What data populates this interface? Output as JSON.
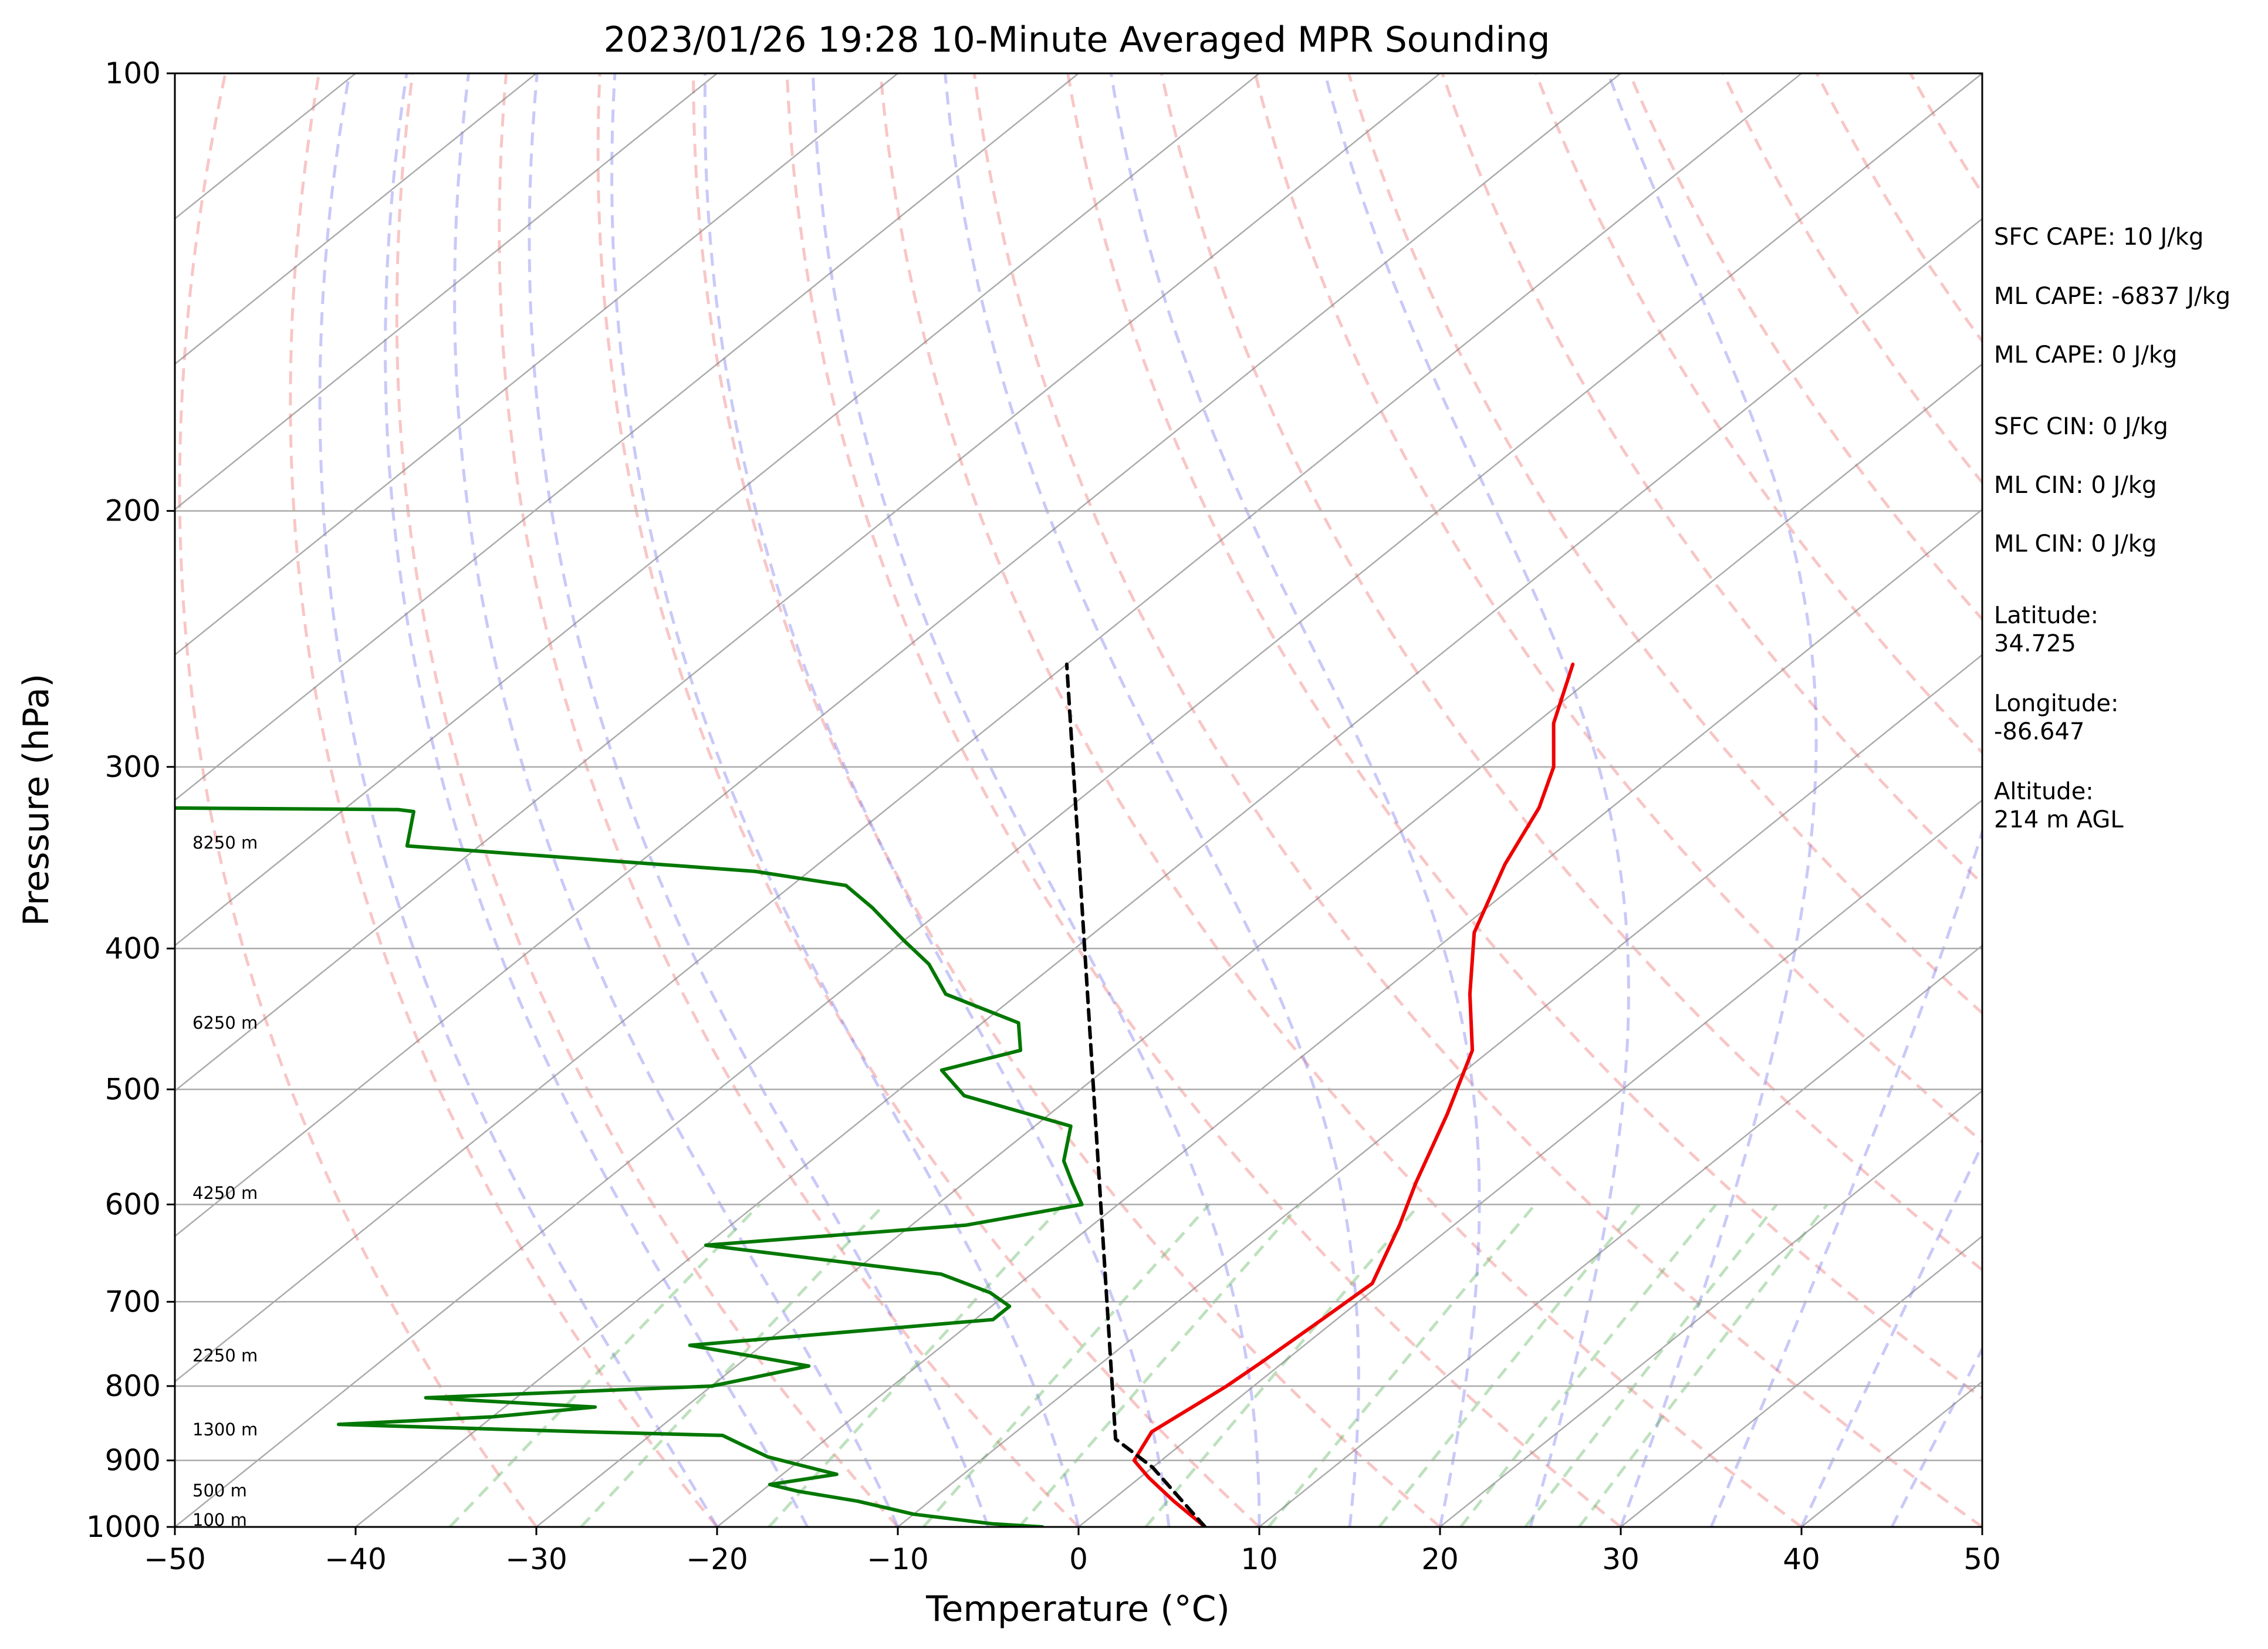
{
  "chart_data": {
    "type": "line",
    "title": "2023/01/26 19:28 10-Minute Averaged MPR Sounding",
    "xlabel": "Temperature (°C)",
    "ylabel": "Pressure (hPa)",
    "xlim": [
      -50,
      50
    ],
    "ylim": [
      1000,
      100
    ],
    "y_scale": "log",
    "skew": true,
    "grid": true,
    "x_ticks": [
      "−50",
      "−40",
      "−30",
      "−20",
      "−10",
      "0",
      "10",
      "20",
      "30",
      "40",
      "50"
    ],
    "y_ticks": [
      "100",
      "200",
      "300",
      "400",
      "500",
      "600",
      "700",
      "800",
      "900",
      "1000"
    ],
    "series": [
      {
        "color": "#ee0000",
        "points": [
          [
            7.0,
            1000
          ],
          [
            3.5,
            960
          ],
          [
            0.5,
            925
          ],
          [
            -1.5,
            900
          ],
          [
            -2.5,
            860
          ],
          [
            -2.0,
            830
          ],
          [
            -1.5,
            800
          ],
          [
            -1.2,
            770
          ],
          [
            -0.8,
            720
          ],
          [
            -0.5,
            680
          ],
          [
            -3.0,
            620
          ],
          [
            -5.0,
            580
          ],
          [
            -8.0,
            520
          ],
          [
            -11.0,
            470
          ],
          [
            -15.0,
            430
          ],
          [
            -19.0,
            390
          ],
          [
            -22.0,
            350
          ],
          [
            -24.0,
            320
          ],
          [
            -26.0,
            300
          ],
          [
            -29.0,
            280
          ],
          [
            -32.0,
            255
          ]
        ]
      },
      {
        "color": "#007700",
        "points": [
          [
            -2,
            1000
          ],
          [
            -5,
            995
          ],
          [
            -10,
            980
          ],
          [
            -14,
            960
          ],
          [
            -18,
            945
          ],
          [
            -20,
            935
          ],
          [
            -17,
            920
          ],
          [
            -20,
            905
          ],
          [
            -22,
            895
          ],
          [
            -24,
            880
          ],
          [
            -26,
            865
          ],
          [
            -34,
            860
          ],
          [
            -48,
            850
          ],
          [
            -40,
            840
          ],
          [
            -35,
            827
          ],
          [
            -45,
            815
          ],
          [
            -30,
            800
          ],
          [
            -26,
            775
          ],
          [
            -34,
            750
          ],
          [
            -19,
            720
          ],
          [
            -19,
            705
          ],
          [
            -21,
            690
          ],
          [
            -25,
            670
          ],
          [
            -40,
            640
          ],
          [
            -27,
            620
          ],
          [
            -22,
            600
          ],
          [
            -24,
            580
          ],
          [
            -26,
            560
          ],
          [
            -28,
            530
          ],
          [
            -36,
            505
          ],
          [
            -39,
            485
          ],
          [
            -36,
            470
          ],
          [
            -38,
            450
          ],
          [
            -44,
            430
          ],
          [
            -47,
            410
          ],
          [
            -50,
            395
          ],
          [
            -54,
            375
          ],
          [
            -57,
            362
          ],
          [
            -63,
            354
          ],
          [
            -84,
            340
          ],
          [
            -86,
            322
          ],
          [
            -87,
            321
          ],
          [
            -102,
            320
          ]
        ]
      },
      {
        "color": "#000000",
        "dashed": true,
        "points": [
          [
            7.0,
            1000
          ],
          [
            0.0,
            910
          ],
          [
            -4.0,
            870
          ],
          [
            -60.0,
            255
          ]
        ]
      }
    ],
    "height_labels": [
      "8250 m",
      "6250 m",
      "4250 m",
      "2250 m",
      "1300 m",
      "500 m",
      "100 m"
    ],
    "info": {
      "sfc_cape": "SFC CAPE: 10 J/kg",
      "ml_cape_1": "ML CAPE: -6837 J/kg",
      "ml_cape_2": "ML CAPE: 0 J/kg",
      "sfc_cin": "SFC CIN: 0 J/kg",
      "ml_cin_1": "ML CIN: 0 J/kg",
      "ml_cin_2": "ML CIN: 0 J/kg",
      "latitude_label": "Latitude:",
      "latitude_value": "34.725",
      "longitude_label": "Longitude:",
      "longitude_value": "-86.647",
      "altitude_label": "Altitude:",
      "altitude_value": "214 m AGL"
    }
  }
}
